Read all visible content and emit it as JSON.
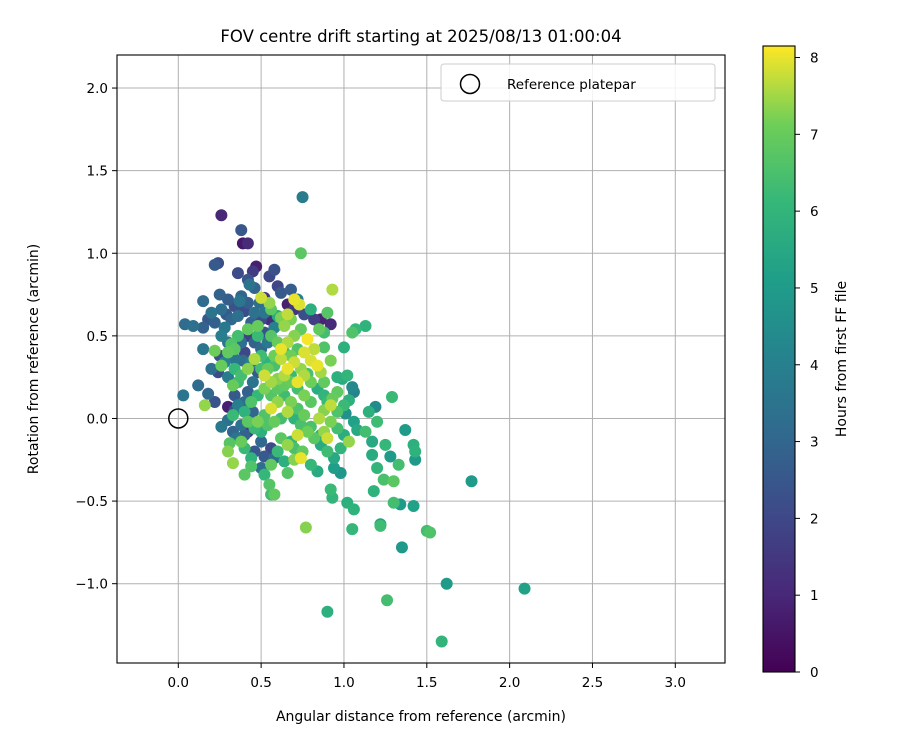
{
  "chart_data": {
    "type": "scatter",
    "title": "FOV centre drift starting at 2025/08/13 01:00:04",
    "xlabel": "Angular distance from reference (arcmin)",
    "ylabel": "Rotation from reference (arcmin)",
    "xlim": [
      -0.37,
      3.3
    ],
    "ylim": [
      -1.48,
      2.2
    ],
    "x_ticks": [
      0.0,
      0.5,
      1.0,
      1.5,
      2.0,
      2.5,
      3.0
    ],
    "x_tick_labels": [
      "0.0",
      "0.5",
      "1.0",
      "1.5",
      "2.0",
      "2.5",
      "3.0"
    ],
    "y_ticks": [
      -1.0,
      -0.5,
      0.0,
      0.5,
      1.0,
      1.5,
      2.0
    ],
    "y_tick_labels": [
      "−1.0",
      "−0.5",
      "0.0",
      "0.5",
      "1.0",
      "1.5",
      "2.0"
    ],
    "grid": true,
    "legend": {
      "position": "top-right",
      "entries": [
        "Reference platepar"
      ]
    },
    "reference_point": {
      "x": 0.0,
      "y": 0.0
    },
    "colorbar": {
      "label": "Hours from first FF file",
      "range": [
        0,
        8.15
      ],
      "ticks": [
        0,
        1,
        2,
        3,
        4,
        5,
        6,
        7,
        8
      ],
      "tick_labels": [
        "0",
        "1",
        "2",
        "3",
        "4",
        "5",
        "6",
        "7",
        "8"
      ],
      "colormap": "viridis"
    },
    "points": [
      [
        0.26,
        1.23,
        1.0
      ],
      [
        0.39,
        1.06,
        0.6
      ],
      [
        0.42,
        1.06,
        1.1
      ],
      [
        0.38,
        1.14,
        2.5
      ],
      [
        0.75,
        1.34,
        3.8
      ],
      [
        0.24,
        0.94,
        2.2
      ],
      [
        0.22,
        0.93,
        2.6
      ],
      [
        0.36,
        0.88,
        2.1
      ],
      [
        0.47,
        0.92,
        0.8
      ],
      [
        0.45,
        0.89,
        1.6
      ],
      [
        0.55,
        0.86,
        2.0
      ],
      [
        0.42,
        0.84,
        2.4
      ],
      [
        0.58,
        0.9,
        2.3
      ],
      [
        0.6,
        0.8,
        1.9
      ],
      [
        0.43,
        0.81,
        3.5
      ],
      [
        0.46,
        0.79,
        3.0
      ],
      [
        0.25,
        0.75,
        2.9
      ],
      [
        0.15,
        0.71,
        3.2
      ],
      [
        0.37,
        0.71,
        3.6
      ],
      [
        0.52,
        0.73,
        1.4
      ],
      [
        0.49,
        0.7,
        3.3
      ],
      [
        0.62,
        0.76,
        2.6
      ],
      [
        0.68,
        0.78,
        2.7
      ],
      [
        0.72,
        0.72,
        3.9
      ],
      [
        0.74,
        1.0,
        6.8
      ],
      [
        0.93,
        0.78,
        7.6
      ],
      [
        0.29,
        0.63,
        2.6
      ],
      [
        0.32,
        0.6,
        3.1
      ],
      [
        0.36,
        0.62,
        3.4
      ],
      [
        0.4,
        0.65,
        2.2
      ],
      [
        0.2,
        0.64,
        3.5
      ],
      [
        0.18,
        0.6,
        2.5
      ],
      [
        0.09,
        0.56,
        3.4
      ],
      [
        0.04,
        0.57,
        3.2
      ],
      [
        0.15,
        0.55,
        2.9
      ],
      [
        0.28,
        0.55,
        3.7
      ],
      [
        0.44,
        0.58,
        3.0
      ],
      [
        0.5,
        0.6,
        2.1
      ],
      [
        0.55,
        0.6,
        1.2
      ],
      [
        0.58,
        0.55,
        4.0
      ],
      [
        0.66,
        0.69,
        0.8
      ],
      [
        0.7,
        0.66,
        1.5
      ],
      [
        0.76,
        0.63,
        2.2
      ],
      [
        0.8,
        0.66,
        5.8
      ],
      [
        0.82,
        0.6,
        1.7
      ],
      [
        0.86,
        0.6,
        0.9
      ],
      [
        0.92,
        0.57,
        1.1
      ],
      [
        0.88,
        0.52,
        6.4
      ],
      [
        0.85,
        0.54,
        6.9
      ],
      [
        1.05,
        0.52,
        6.6
      ],
      [
        1.07,
        0.54,
        6.1
      ],
      [
        1.13,
        0.56,
        5.9
      ],
      [
        0.9,
        0.64,
        6.7
      ],
      [
        0.5,
        0.73,
        7.8
      ],
      [
        0.55,
        0.7,
        7.4
      ],
      [
        0.7,
        0.72,
        8.0
      ],
      [
        0.73,
        0.69,
        7.9
      ],
      [
        0.66,
        0.63,
        7.7
      ],
      [
        0.62,
        0.61,
        7.2
      ],
      [
        0.48,
        0.56,
        7.0
      ],
      [
        0.42,
        0.54,
        6.9
      ],
      [
        0.36,
        0.5,
        6.4
      ],
      [
        0.32,
        0.45,
        6.6
      ],
      [
        0.22,
        0.41,
        7.1
      ],
      [
        0.15,
        0.42,
        3.6
      ],
      [
        0.25,
        0.38,
        2.3
      ],
      [
        0.31,
        0.38,
        1.9
      ],
      [
        0.34,
        0.36,
        3.6
      ],
      [
        0.39,
        0.35,
        3.3
      ],
      [
        0.28,
        0.34,
        4.1
      ],
      [
        0.2,
        0.3,
        3.4
      ],
      [
        0.24,
        0.28,
        2.2
      ],
      [
        0.3,
        0.25,
        3.8
      ],
      [
        0.36,
        0.22,
        6.3
      ],
      [
        0.33,
        0.2,
        7.0
      ],
      [
        0.12,
        0.2,
        3.2
      ],
      [
        0.18,
        0.15,
        3.1
      ],
      [
        0.22,
        0.1,
        2.4
      ],
      [
        0.16,
        0.08,
        7.4
      ],
      [
        0.03,
        0.14,
        3.6
      ],
      [
        0.3,
        0.07,
        0.8
      ],
      [
        0.34,
        0.05,
        2.2
      ],
      [
        0.33,
        0.02,
        6.2
      ],
      [
        0.3,
        -0.01,
        3.4
      ],
      [
        0.26,
        -0.05,
        3.7
      ],
      [
        0.33,
        -0.08,
        3.0
      ],
      [
        0.35,
        -0.12,
        3.6
      ],
      [
        0.42,
        -0.08,
        1.5
      ],
      [
        0.38,
        -0.14,
        7.0
      ],
      [
        0.31,
        -0.15,
        6.7
      ],
      [
        0.3,
        -0.2,
        7.3
      ],
      [
        0.33,
        -0.27,
        7.4
      ],
      [
        0.4,
        -0.34,
        6.8
      ],
      [
        0.44,
        -0.29,
        6.6
      ],
      [
        0.5,
        -0.3,
        3.3
      ],
      [
        0.52,
        -0.23,
        2.6
      ],
      [
        0.46,
        -0.2,
        2.5
      ],
      [
        0.5,
        -0.14,
        3.1
      ],
      [
        0.56,
        -0.18,
        2.1
      ],
      [
        0.58,
        -0.24,
        3.2
      ],
      [
        0.55,
        -0.4,
        6.7
      ],
      [
        0.56,
        -0.46,
        6.3
      ],
      [
        0.58,
        -0.46,
        6.9
      ],
      [
        0.66,
        -0.33,
        6.7
      ],
      [
        0.7,
        -0.25,
        7.3
      ],
      [
        0.74,
        -0.24,
        8.0
      ],
      [
        0.75,
        -0.2,
        6.9
      ],
      [
        0.8,
        -0.28,
        6.1
      ],
      [
        0.84,
        -0.32,
        5.6
      ],
      [
        0.94,
        -0.3,
        5.1
      ],
      [
        0.98,
        -0.33,
        4.8
      ],
      [
        0.92,
        -0.43,
        6.2
      ],
      [
        0.93,
        -0.48,
        6.0
      ],
      [
        1.06,
        -0.55,
        5.9
      ],
      [
        1.02,
        -0.51,
        5.8
      ],
      [
        1.05,
        -0.67,
        6.1
      ],
      [
        1.18,
        -0.44,
        5.9
      ],
      [
        1.22,
        -0.64,
        5.3
      ],
      [
        1.22,
        -0.65,
        6.3
      ],
      [
        1.3,
        -0.51,
        6.4
      ],
      [
        1.34,
        -0.52,
        5.0
      ],
      [
        1.42,
        -0.53,
        5.2
      ],
      [
        1.35,
        -0.78,
        4.9
      ],
      [
        1.5,
        -0.68,
        6.4
      ],
      [
        1.52,
        -0.69,
        6.6
      ],
      [
        0.77,
        -0.66,
        7.3
      ],
      [
        0.9,
        -1.17,
        5.8
      ],
      [
        1.26,
        -1.1,
        6.4
      ],
      [
        1.59,
        -1.35,
        6.0
      ],
      [
        1.62,
        -1.0,
        5.0
      ],
      [
        2.09,
        -1.03,
        5.2
      ],
      [
        1.77,
        -0.38,
        5.0
      ],
      [
        1.37,
        -0.07,
        5.0
      ],
      [
        1.42,
        -0.16,
        5.8
      ],
      [
        1.43,
        -0.2,
        5.9
      ],
      [
        1.43,
        -0.25,
        4.9
      ],
      [
        1.33,
        -0.28,
        6.4
      ],
      [
        1.3,
        -0.38,
        6.8
      ],
      [
        1.24,
        -0.37,
        6.5
      ],
      [
        1.2,
        -0.3,
        6.0
      ],
      [
        1.17,
        -0.22,
        5.6
      ],
      [
        1.17,
        -0.14,
        5.5
      ],
      [
        1.25,
        -0.16,
        6.1
      ],
      [
        1.28,
        -0.23,
        5.0
      ],
      [
        1.19,
        0.07,
        4.4
      ],
      [
        1.2,
        -0.02,
        6.3
      ],
      [
        1.15,
        0.04,
        5.8
      ],
      [
        1.13,
        -0.08,
        6.4
      ],
      [
        1.08,
        -0.07,
        5.5
      ],
      [
        1.03,
        -0.14,
        7.4
      ],
      [
        1.06,
        -0.02,
        5.2
      ],
      [
        1.01,
        0.03,
        4.6
      ],
      [
        1.03,
        0.11,
        5.8
      ],
      [
        1.06,
        0.16,
        4.1
      ],
      [
        1.05,
        0.19,
        4.3
      ],
      [
        0.99,
        0.24,
        5.6
      ],
      [
        1.02,
        0.26,
        6.0
      ],
      [
        0.96,
        0.25,
        5.8
      ],
      [
        0.92,
        0.35,
        7.2
      ],
      [
        0.88,
        0.43,
        6.6
      ],
      [
        1.0,
        0.43,
        5.8
      ],
      [
        1.29,
        0.13,
        6.2
      ],
      [
        0.93,
        0.12,
        7.0
      ],
      [
        0.9,
        0.1,
        6.2
      ],
      [
        0.88,
        0.05,
        7.3
      ],
      [
        0.85,
        0.0,
        7.6
      ],
      [
        0.88,
        -0.08,
        7.4
      ],
      [
        0.9,
        -0.12,
        7.8
      ],
      [
        0.86,
        -0.1,
        5.9
      ],
      [
        0.8,
        -0.05,
        6.5
      ],
      [
        0.76,
        0.02,
        7.0
      ],
      [
        0.72,
        0.06,
        6.6
      ],
      [
        0.68,
        0.1,
        7.2
      ],
      [
        0.64,
        0.14,
        6.3
      ],
      [
        0.6,
        0.18,
        6.8
      ],
      [
        0.56,
        0.22,
        7.5
      ],
      [
        0.52,
        0.26,
        7.8
      ],
      [
        0.5,
        0.3,
        6.4
      ],
      [
        0.54,
        0.34,
        5.9
      ],
      [
        0.58,
        0.38,
        7.1
      ],
      [
        0.62,
        0.42,
        8.0
      ],
      [
        0.66,
        0.46,
        7.6
      ],
      [
        0.7,
        0.5,
        7.3
      ],
      [
        0.74,
        0.54,
        6.9
      ],
      [
        0.78,
        0.48,
        8.1
      ],
      [
        0.82,
        0.42,
        7.7
      ],
      [
        0.8,
        0.35,
        7.9
      ],
      [
        0.84,
        0.32,
        8.0
      ],
      [
        0.86,
        0.28,
        7.5
      ],
      [
        0.78,
        0.27,
        6.5
      ],
      [
        0.74,
        0.3,
        7.4
      ],
      [
        0.7,
        0.34,
        7.8
      ],
      [
        0.66,
        0.3,
        8.0
      ],
      [
        0.64,
        0.26,
        7.6
      ],
      [
        0.68,
        0.22,
        7.0
      ],
      [
        0.72,
        0.18,
        6.4
      ],
      [
        0.76,
        0.14,
        7.2
      ],
      [
        0.8,
        0.1,
        6.8
      ],
      [
        0.84,
        0.18,
        5.7
      ],
      [
        0.88,
        0.22,
        6.9
      ],
      [
        0.6,
        0.1,
        7.4
      ],
      [
        0.56,
        0.06,
        7.9
      ],
      [
        0.52,
        0.02,
        6.6
      ],
      [
        0.48,
        -0.02,
        7.2
      ],
      [
        0.45,
        0.04,
        3.0
      ],
      [
        0.4,
        0.1,
        3.2
      ],
      [
        0.42,
        0.16,
        2.8
      ],
      [
        0.45,
        0.22,
        3.5
      ],
      [
        0.48,
        0.28,
        2.6
      ],
      [
        0.44,
        0.34,
        3.9
      ],
      [
        0.4,
        0.4,
        2.0
      ],
      [
        0.38,
        0.46,
        3.3
      ],
      [
        0.42,
        0.5,
        1.8
      ],
      [
        0.46,
        0.46,
        2.9
      ],
      [
        0.5,
        0.42,
        3.1
      ],
      [
        0.54,
        0.46,
        3.7
      ],
      [
        0.52,
        0.52,
        2.4
      ],
      [
        0.48,
        0.5,
        6.2
      ],
      [
        0.56,
        0.5,
        6.7
      ],
      [
        0.6,
        0.46,
        7.0
      ],
      [
        0.64,
        0.56,
        7.4
      ],
      [
        0.68,
        0.6,
        7.2
      ],
      [
        0.6,
        0.62,
        5.6
      ],
      [
        0.56,
        0.66,
        6.8
      ],
      [
        0.52,
        0.64,
        3.6
      ],
      [
        0.46,
        0.64,
        3.4
      ],
      [
        0.42,
        0.7,
        2.8
      ],
      [
        0.38,
        0.74,
        3.0
      ],
      [
        0.34,
        0.68,
        2.3
      ],
      [
        0.3,
        0.72,
        2.7
      ],
      [
        0.26,
        0.66,
        3.3
      ],
      [
        0.22,
        0.58,
        2.8
      ],
      [
        0.26,
        0.5,
        3.9
      ],
      [
        0.3,
        0.46,
        3.6
      ],
      [
        0.34,
        0.42,
        6.8
      ],
      [
        0.3,
        0.4,
        6.9
      ],
      [
        0.26,
        0.32,
        7.0
      ],
      [
        0.34,
        0.3,
        6.1
      ],
      [
        0.38,
        0.26,
        6.4
      ],
      [
        0.42,
        0.3,
        7.3
      ],
      [
        0.46,
        0.36,
        7.6
      ],
      [
        0.5,
        0.38,
        6.3
      ],
      [
        0.54,
        0.3,
        7.0
      ],
      [
        0.58,
        0.32,
        6.5
      ],
      [
        0.62,
        0.36,
        7.7
      ],
      [
        0.64,
        0.4,
        6.2
      ],
      [
        0.68,
        0.38,
        7.1
      ],
      [
        0.72,
        0.42,
        6.6
      ],
      [
        0.76,
        0.4,
        7.9
      ],
      [
        0.8,
        0.22,
        7.1
      ],
      [
        0.76,
        0.26,
        7.6
      ],
      [
        0.72,
        0.22,
        8.0
      ],
      [
        0.68,
        0.26,
        6.2
      ],
      [
        0.64,
        0.2,
        6.9
      ],
      [
        0.6,
        0.24,
        7.3
      ],
      [
        0.56,
        0.14,
        6.7
      ],
      [
        0.52,
        0.18,
        7.2
      ],
      [
        0.48,
        0.14,
        6.1
      ],
      [
        0.44,
        0.1,
        6.6
      ],
      [
        0.4,
        0.04,
        5.9
      ],
      [
        0.42,
        -0.02,
        6.8
      ],
      [
        0.46,
        -0.06,
        6.2
      ],
      [
        0.5,
        -0.08,
        5.8
      ],
      [
        0.54,
        -0.04,
        6.6
      ],
      [
        0.58,
        -0.02,
        7.0
      ],
      [
        0.62,
        0.0,
        6.4
      ],
      [
        0.66,
        0.04,
        7.6
      ],
      [
        0.7,
        0.0,
        5.9
      ],
      [
        0.74,
        -0.04,
        6.5
      ],
      [
        0.78,
        -0.08,
        7.1
      ],
      [
        0.82,
        -0.12,
        6.8
      ],
      [
        0.86,
        -0.16,
        5.6
      ],
      [
        0.9,
        -0.2,
        6.3
      ],
      [
        0.94,
        -0.24,
        5.5
      ],
      [
        0.98,
        -0.18,
        6.0
      ],
      [
        1.0,
        -0.1,
        5.7
      ],
      [
        0.96,
        -0.06,
        6.4
      ],
      [
        0.92,
        -0.02,
        7.2
      ],
      [
        0.96,
        0.04,
        6.6
      ],
      [
        0.92,
        0.08,
        7.7
      ],
      [
        0.88,
        0.14,
        6.0
      ],
      [
        0.96,
        0.16,
        6.9
      ],
      [
        1.0,
        0.08,
        6.2
      ],
      [
        0.62,
        -0.12,
        6.8
      ],
      [
        0.66,
        -0.16,
        7.4
      ],
      [
        0.6,
        -0.2,
        6.2
      ],
      [
        0.64,
        -0.26,
        5.8
      ],
      [
        0.68,
        -0.14,
        6.0
      ],
      [
        0.72,
        -0.1,
        7.8
      ],
      [
        0.7,
        -0.18,
        6.5
      ],
      [
        0.56,
        -0.28,
        6.9
      ],
      [
        0.52,
        -0.34,
        6.1
      ],
      [
        0.44,
        -0.24,
        5.9
      ],
      [
        0.4,
        -0.18,
        6.2
      ],
      [
        0.38,
        -0.04,
        3.4
      ],
      [
        0.36,
        0.08,
        3.9
      ],
      [
        0.34,
        0.14,
        2.6
      ],
      [
        0.4,
        -0.1,
        2.9
      ]
    ]
  }
}
